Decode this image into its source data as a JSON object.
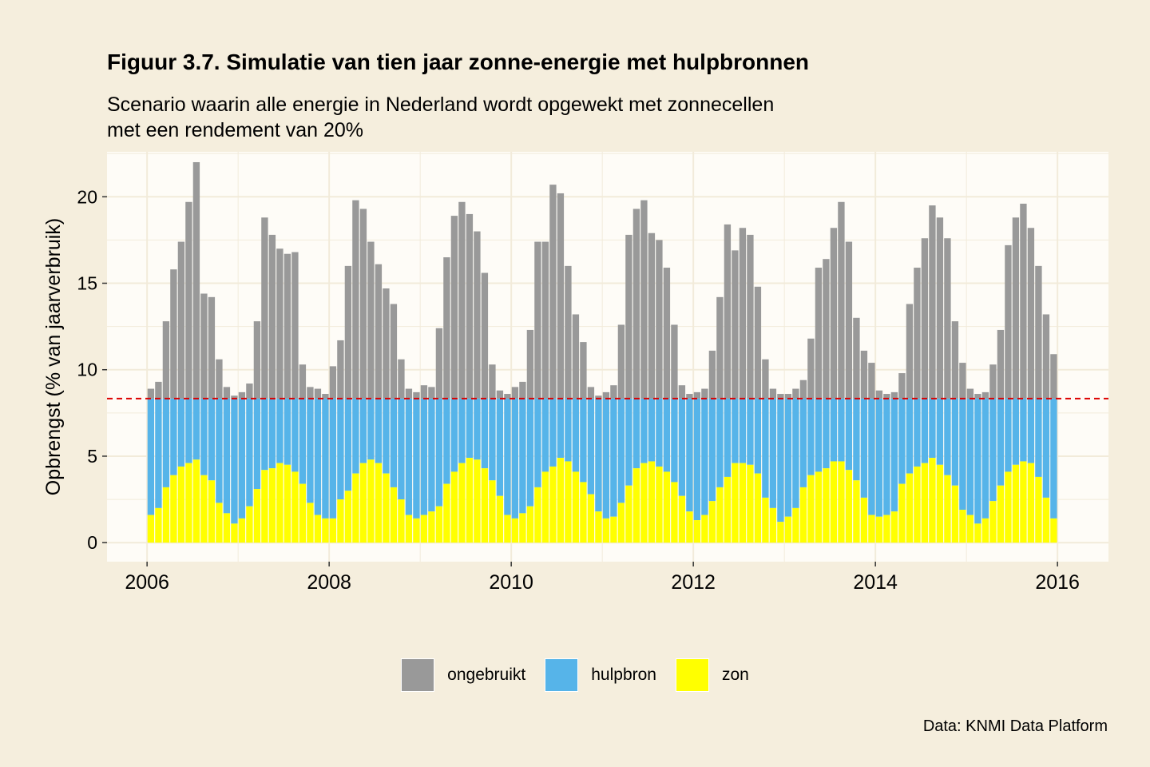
{
  "chart": {
    "title": "Figuur 3.7. Simulatie van tien jaar zonne-energie met hulpbronnen",
    "subtitle_line1": "Scenario waarin alle energie in Nederland wordt opgewekt met zonnecellen",
    "subtitle_line2": "met een rendement van 20%",
    "caption": "Data: KNMI Data Platform"
  },
  "chart_data": {
    "type": "bar",
    "stacked": true,
    "title": "Figuur 3.7. Simulatie van tien jaar zonne-energie met hulpbronnen",
    "subtitle": "Scenario waarin alle energie in Nederland wordt opgewekt met zonnecellen met een rendement van 20%",
    "xlabel": "",
    "ylabel": "Opbrengst (% van jaarverbruik)",
    "xlim": [
      2005.56,
      2016.56
    ],
    "ylim": [
      -1.1,
      22.6
    ],
    "x_ticks": [
      2006,
      2008,
      2010,
      2012,
      2014,
      2016
    ],
    "y_ticks": [
      0,
      5,
      10,
      15,
      20
    ],
    "grid": true,
    "legend_position": "bottom",
    "start_year": 2006,
    "reference_line": {
      "y": 8.33,
      "color": "#DD0000",
      "style": "dashed"
    },
    "colors": {
      "ongebruikt": "#999999",
      "hulpbron": "#56B4E9",
      "zon": "#FFFF00",
      "panel": "#FEFCF7",
      "grid": "#F2EBDA"
    },
    "legend": [
      {
        "key": "ongebruikt",
        "label": "ongebruikt"
      },
      {
        "key": "hulpbron",
        "label": "hulpbron"
      },
      {
        "key": "zon",
        "label": "zon"
      }
    ],
    "series_note": "Values are monthly, January 2006 through December 2015 (120 months). 'total' is the simulated solar yield; 'zon' is the part used directly, 'hulpbron' fills up to the dashed line, 'ongebruikt' is the excess above it.",
    "total": [
      8.9,
      9.3,
      12.8,
      15.8,
      17.4,
      19.7,
      22.0,
      14.4,
      14.2,
      10.6,
      9.0,
      8.5,
      8.7,
      9.2,
      12.8,
      18.8,
      17.8,
      17.0,
      16.7,
      16.8,
      10.3,
      9.0,
      8.9,
      8.6,
      10.2,
      11.7,
      16.0,
      19.8,
      19.3,
      17.4,
      16.1,
      14.7,
      13.8,
      10.6,
      8.9,
      8.7,
      9.1,
      9.0,
      12.4,
      16.5,
      18.9,
      19.7,
      19.0,
      18.0,
      15.6,
      10.3,
      8.8,
      8.6,
      9.0,
      9.3,
      12.3,
      17.4,
      17.4,
      20.7,
      20.2,
      16.0,
      13.2,
      11.6,
      9.0,
      8.5,
      8.7,
      9.1,
      12.6,
      17.8,
      19.3,
      19.8,
      17.9,
      17.5,
      15.9,
      12.6,
      9.1,
      8.6,
      8.7,
      8.9,
      11.1,
      14.2,
      18.4,
      16.9,
      18.2,
      17.8,
      14.8,
      10.6,
      8.9,
      8.6,
      8.6,
      8.9,
      9.4,
      11.8,
      15.9,
      16.4,
      18.2,
      19.7,
      17.4,
      13.0,
      11.1,
      10.4,
      8.8,
      8.6,
      8.7,
      9.8,
      13.8,
      15.9,
      17.6,
      19.5,
      18.8,
      17.6,
      12.8,
      10.4,
      8.9,
      8.6,
      8.7,
      10.3,
      12.3,
      17.2,
      18.8,
      19.6,
      18.2,
      16.0,
      13.2,
      10.9
    ],
    "zon": [
      1.6,
      2.0,
      3.2,
      3.9,
      4.4,
      4.6,
      4.8,
      3.9,
      3.6,
      2.3,
      1.7,
      1.1,
      1.4,
      2.1,
      3.1,
      4.2,
      4.3,
      4.6,
      4.5,
      4.1,
      3.4,
      2.3,
      1.6,
      1.4,
      1.4,
      2.5,
      3.0,
      4.0,
      4.6,
      4.8,
      4.6,
      4.0,
      3.2,
      2.5,
      1.6,
      1.4,
      1.6,
      1.8,
      2.1,
      3.4,
      4.1,
      4.6,
      4.9,
      4.8,
      4.3,
      3.6,
      2.7,
      1.6,
      1.4,
      1.7,
      2.1,
      3.2,
      4.1,
      4.4,
      4.9,
      4.7,
      4.1,
      3.5,
      2.8,
      1.8,
      1.4,
      1.5,
      2.3,
      3.3,
      4.3,
      4.6,
      4.7,
      4.4,
      4.1,
      3.5,
      2.7,
      1.8,
      1.3,
      1.6,
      2.4,
      3.2,
      3.8,
      4.6,
      4.6,
      4.5,
      4.0,
      2.6,
      2.0,
      1.2,
      1.5,
      2.0,
      3.2,
      3.9,
      4.1,
      4.3,
      4.7,
      4.7,
      4.2,
      3.6,
      2.6,
      1.6,
      1.5,
      1.6,
      1.8,
      3.4,
      4.0,
      4.4,
      4.6,
      4.9,
      4.5,
      3.9,
      3.3,
      1.9,
      1.6,
      1.1,
      1.4,
      2.4,
      3.3,
      4.1,
      4.5,
      4.7,
      4.6,
      3.8,
      2.6,
      1.4
    ]
  }
}
